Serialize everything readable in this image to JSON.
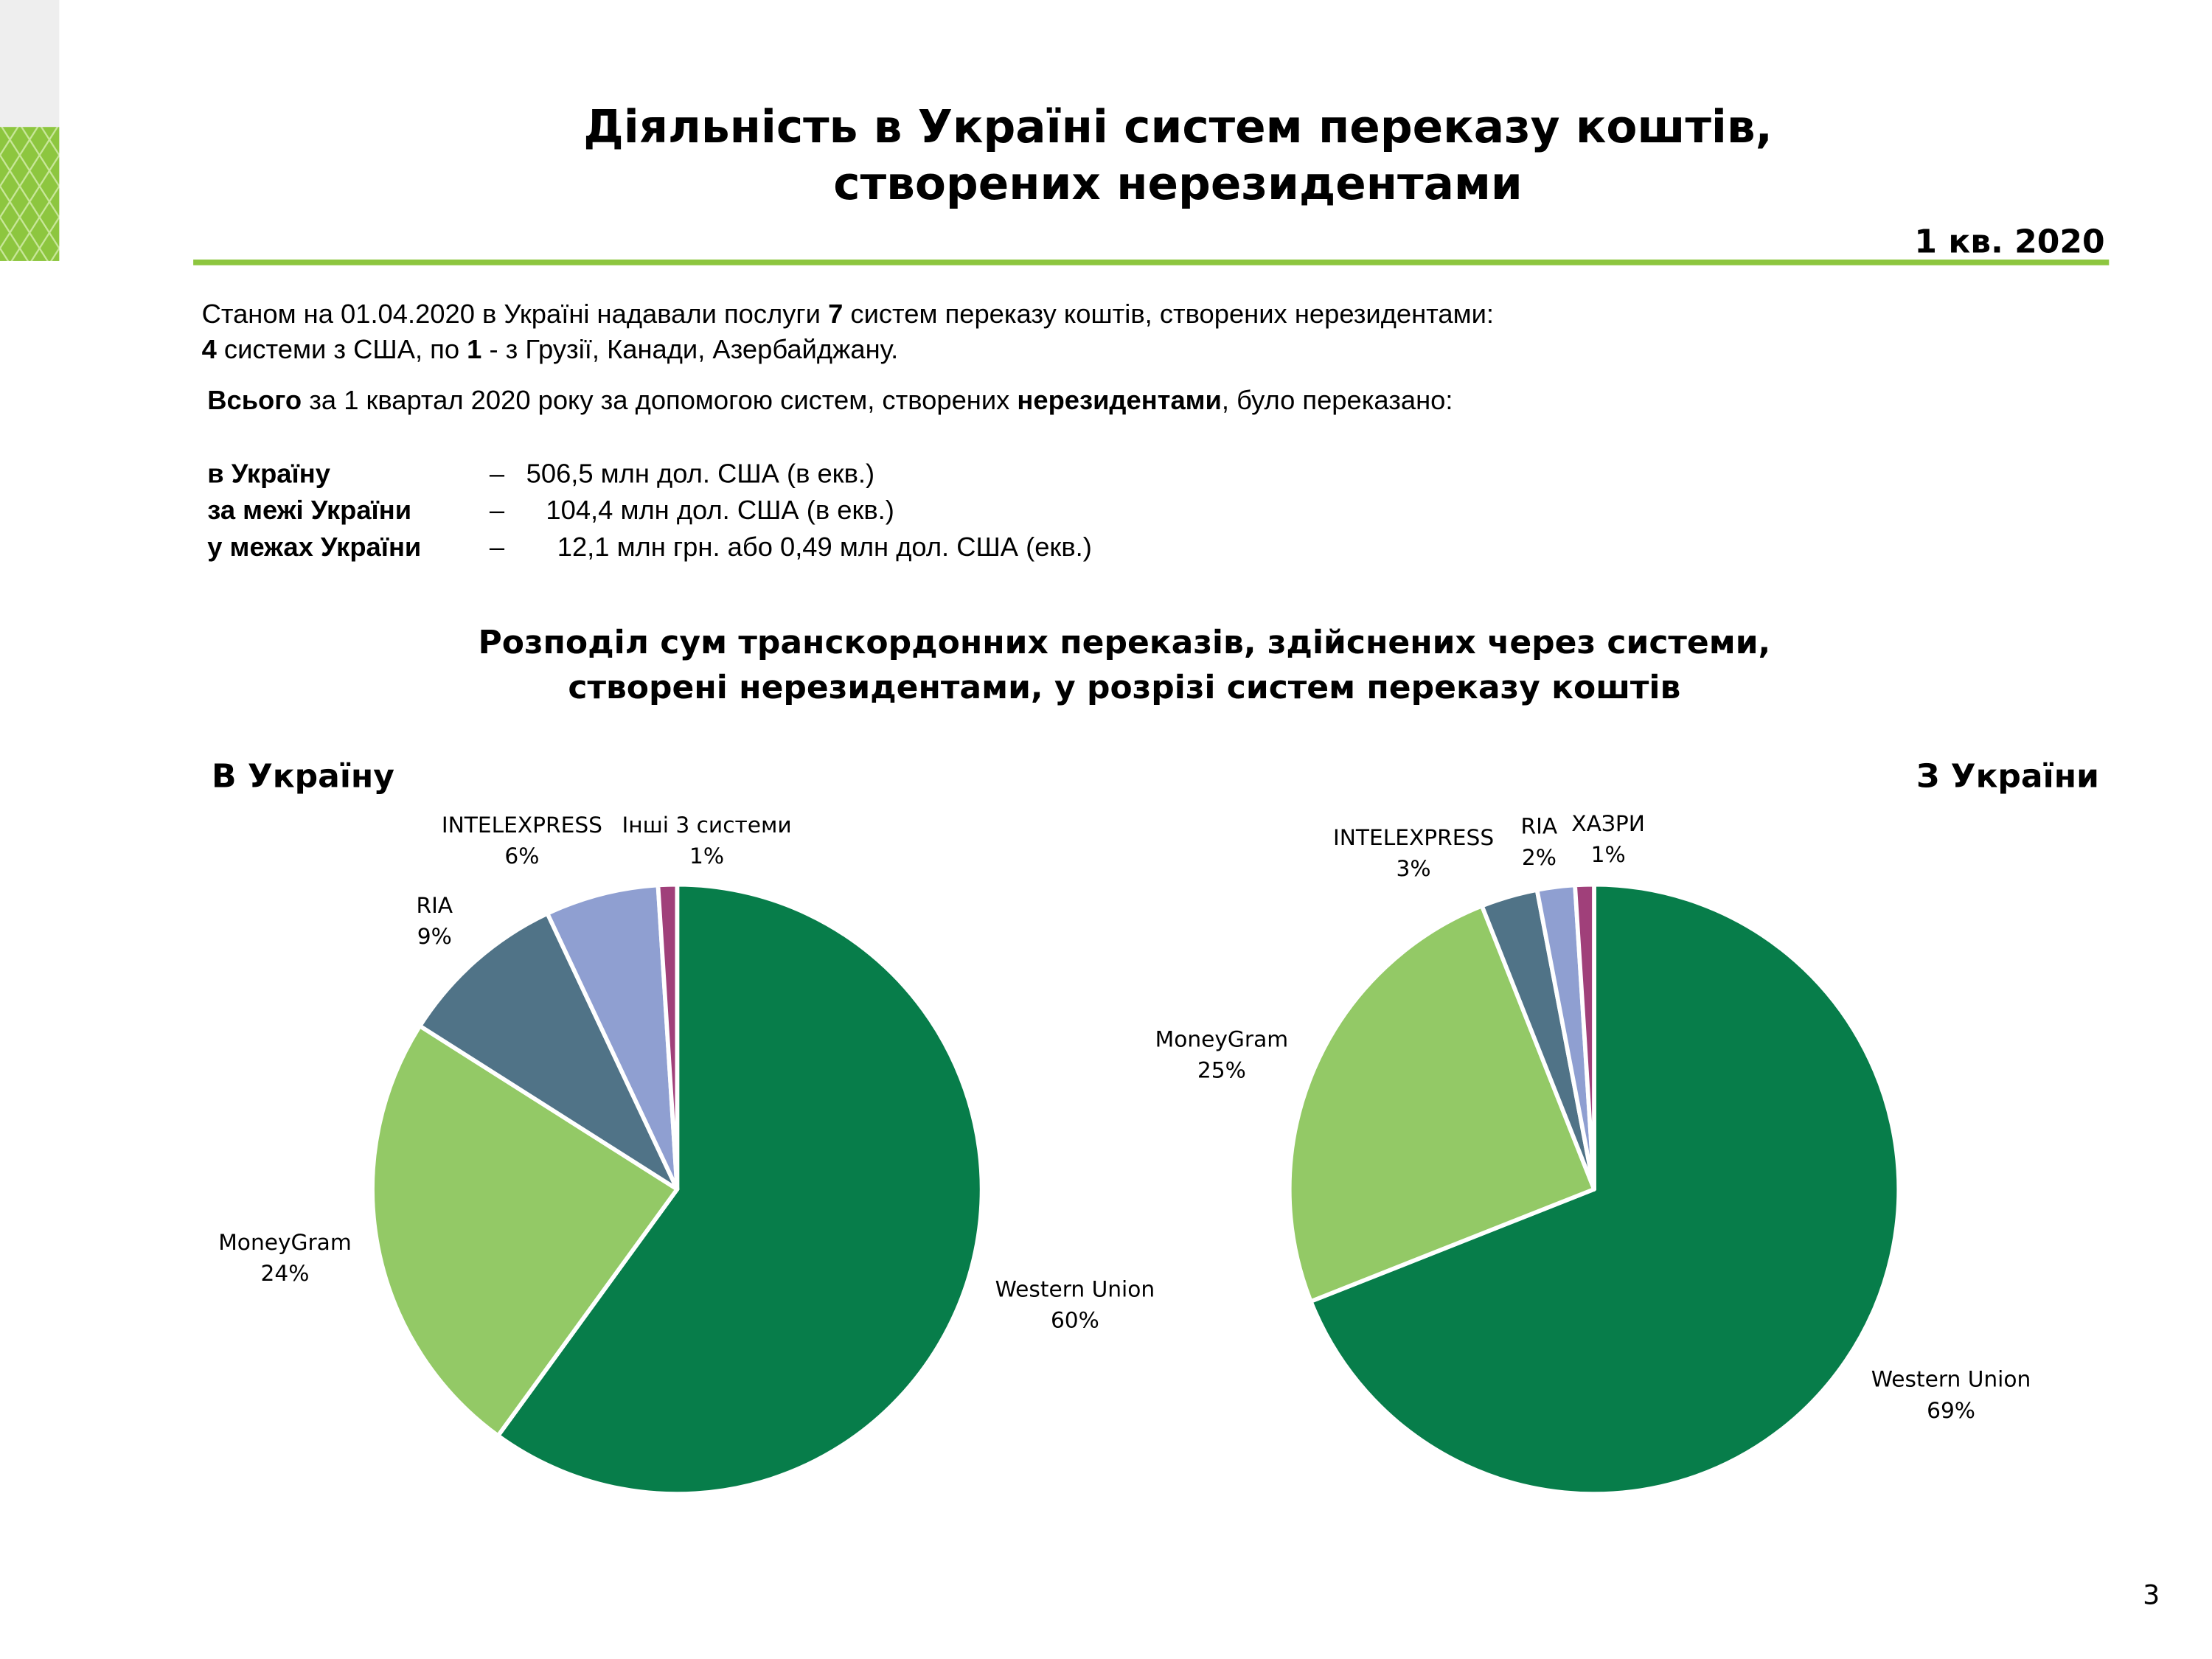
{
  "header": {
    "title": [
      "Діяльність в Україні систем переказу коштів,",
      "створених нерезидентами"
    ],
    "period": "1 кв. 2020"
  },
  "intro": [
    [
      {
        "text": "Станом на 01.04.2020 в Україні надавали послуги ",
        "bold": false
      },
      {
        "text": "7",
        "bold": true
      },
      {
        "text": " систем переказу коштів, створених нерезидентами:",
        "bold": false
      }
    ],
    [
      {
        "text": "4",
        "bold": true
      },
      {
        "text": " системи з США, по ",
        "bold": false
      },
      {
        "text": "1",
        "bold": true
      },
      {
        "text": " - з Грузії, Канади, Азербайджану.",
        "bold": false
      }
    ],
    [
      {
        "text": "Всього",
        "bold": true
      },
      {
        "text": " за 1 квартал 2020 року за допомогою систем, створених ",
        "bold": false
      },
      {
        "text": "нерезидентами",
        "bold": true
      },
      {
        "text": ", було переказано:",
        "bold": false
      }
    ]
  ],
  "totals": [
    {
      "label": "в Україну",
      "dash": "–",
      "value": "506,5 млн дол. США (в екв.)"
    },
    {
      "label": "за межі України",
      "dash": "–",
      "value": "104,4 млн дол. США (в екв.)"
    },
    {
      "label": "у межах України",
      "dash": "–",
      "value": "12,1 млн грн. або 0,49 млн дол. США (екв.)"
    }
  ],
  "section_title": [
    "Розподіл сум транскордонних переказів, здійснених через системи,",
    "створені нерезидентами, у розрізі систем переказу коштів"
  ],
  "chart_data": [
    {
      "type": "pie",
      "title": "В Україну",
      "categories": [
        "Western Union",
        "MoneyGram",
        "RIA",
        "INTELEXPRESS",
        "Інші 3 системи"
      ],
      "values": [
        60,
        24,
        9,
        6,
        1
      ],
      "value_labels": [
        "60%",
        "24%",
        "9%",
        "6%",
        "1%"
      ],
      "colors": [
        "#077d4a",
        "#93c966",
        "#507387",
        "#8f9fd1",
        "#a0407a"
      ]
    },
    {
      "type": "pie",
      "title": "З України",
      "categories": [
        "Western Union",
        "MoneyGram",
        "INTELEXPRESS",
        "RIA",
        "ХАЗРИ"
      ],
      "values": [
        69,
        25,
        3,
        2,
        1
      ],
      "value_labels": [
        "69%",
        "25%",
        "3%",
        "2%",
        "1%"
      ],
      "colors": [
        "#077d4a",
        "#93c966",
        "#507387",
        "#8f9fd1",
        "#a0407a"
      ]
    }
  ],
  "page_number": "3"
}
